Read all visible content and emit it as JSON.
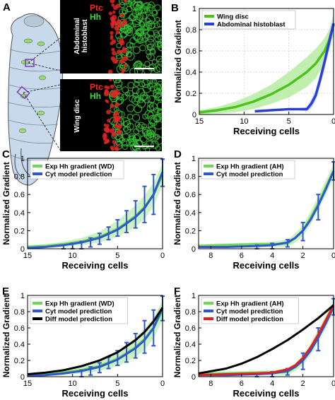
{
  "panel_A": {
    "letter": "A",
    "top_image": {
      "label_ptc": "Ptc",
      "label_hh": "Hh",
      "side_label": "Abdominal histoblast"
    },
    "bottom_image": {
      "label_ptc": "Ptc",
      "label_hh": "Hh",
      "side_label": "Wing disc"
    },
    "colors": {
      "ptc": "#ff2a2a",
      "hh": "#3ddc3d",
      "background": "#000000",
      "larva": "#c7d9ea"
    }
  },
  "chart_data": [
    {
      "panel": "B",
      "type": "line",
      "ylabel": "Normalized Gradient",
      "xlabel": "Receiving cells",
      "xlim": [
        15,
        0
      ],
      "ylim": [
        0,
        1
      ],
      "xticks": [
        "15",
        "10",
        "5",
        "0"
      ],
      "yticks": [
        "0",
        "0.2",
        "0.4",
        "0.6",
        "0.8",
        "1"
      ],
      "grid": true,
      "legend_position": "top-left",
      "series": [
        {
          "name": "Wing disc",
          "color": "#4cc21c",
          "band_color": "#b9eda6",
          "x": [
            15,
            13,
            11,
            9,
            7,
            5,
            3,
            2,
            1,
            0.5,
            0
          ],
          "y": [
            0.02,
            0.04,
            0.07,
            0.12,
            0.19,
            0.28,
            0.4,
            0.48,
            0.6,
            0.7,
            0.85
          ],
          "band": [
            0.02,
            0.03,
            0.05,
            0.07,
            0.09,
            0.12,
            0.14,
            0.14,
            0.12,
            0.1,
            0.1
          ]
        },
        {
          "name": "Abdominal histoblast",
          "color": "#2a3fd6",
          "band_color": "#c3c9f2",
          "x": [
            8.8,
            7,
            5,
            4,
            3,
            2.5,
            2,
            1.5,
            1,
            0.5,
            0
          ],
          "y": [
            0.03,
            0.04,
            0.05,
            0.05,
            0.05,
            0.1,
            0.18,
            0.33,
            0.5,
            0.68,
            0.86
          ],
          "band": [
            0.01,
            0.01,
            0.01,
            0.01,
            0.02,
            0.04,
            0.05,
            0.06,
            0.07,
            0.07,
            0.08
          ]
        }
      ]
    },
    {
      "panel": "C",
      "type": "line",
      "ylabel": "Normalized Gradient",
      "xlabel": "Receiving cells",
      "xlim": [
        15,
        0
      ],
      "ylim": [
        0,
        1
      ],
      "xticks": [
        "15",
        "10",
        "5",
        "0"
      ],
      "yticks": [
        "0",
        "0.2",
        "0.4",
        "0.6",
        "0.8",
        "1"
      ],
      "grid": false,
      "legend_position": "top-left",
      "series": [
        {
          "name": "Exp Hh gradient (WD)",
          "color": "#6fd65a",
          "band_color": "#c6f0bb",
          "x": [
            15,
            13,
            11,
            9,
            7,
            5,
            3,
            2,
            1,
            0
          ],
          "y": [
            0.02,
            0.03,
            0.05,
            0.08,
            0.13,
            0.22,
            0.36,
            0.46,
            0.6,
            0.82
          ],
          "band": [
            0.02,
            0.02,
            0.03,
            0.04,
            0.06,
            0.09,
            0.12,
            0.13,
            0.13,
            0.12
          ]
        },
        {
          "name": "Cyt model prediction",
          "color": "#2e58c9",
          "x": [
            15,
            13,
            11,
            9,
            7,
            5,
            3,
            2,
            1,
            0
          ],
          "y": [
            0.01,
            0.02,
            0.04,
            0.07,
            0.12,
            0.21,
            0.35,
            0.45,
            0.6,
            0.85
          ],
          "errbars": [
            {
              "x": 11,
              "y": 0.01,
              "e": 0.03
            },
            {
              "x": 10,
              "y": 0.02,
              "e": 0.04
            },
            {
              "x": 9,
              "y": 0.04,
              "e": 0.04
            },
            {
              "x": 8,
              "y": 0.07,
              "e": 0.05
            },
            {
              "x": 7,
              "y": 0.11,
              "e": 0.06
            },
            {
              "x": 6,
              "y": 0.17,
              "e": 0.07
            },
            {
              "x": 5,
              "y": 0.23,
              "e": 0.09
            },
            {
              "x": 4,
              "y": 0.3,
              "e": 0.12
            },
            {
              "x": 3,
              "y": 0.38,
              "e": 0.15
            },
            {
              "x": 2,
              "y": 0.49,
              "e": 0.2
            },
            {
              "x": 1,
              "y": 0.6,
              "e": 0.22
            },
            {
              "x": 0,
              "y": 0.84,
              "e": 0.15
            }
          ]
        }
      ]
    },
    {
      "panel": "D",
      "type": "line",
      "ylabel": "Normalized Gradient",
      "xlabel": "Receiving cells",
      "xlim": [
        8.8,
        0
      ],
      "ylim": [
        0,
        1
      ],
      "xticks": [
        "8",
        "6",
        "4",
        "2",
        "0"
      ],
      "yticks": [
        "0",
        "0.2",
        "0.4",
        "0.6",
        "0.8",
        "1"
      ],
      "grid": false,
      "legend_position": "top-left",
      "series": [
        {
          "name": "Exp Hh gradient (AH)",
          "color": "#6fd65a",
          "band_color": "#c6f0bb",
          "x": [
            8.8,
            7,
            5,
            4,
            3,
            2.5,
            2,
            1.5,
            1,
            0.5,
            0
          ],
          "y": [
            0.03,
            0.04,
            0.05,
            0.05,
            0.06,
            0.12,
            0.2,
            0.34,
            0.5,
            0.68,
            0.86
          ],
          "band": [
            0.02,
            0.02,
            0.02,
            0.03,
            0.04,
            0.05,
            0.06,
            0.07,
            0.08,
            0.08,
            0.08
          ]
        },
        {
          "name": "Cyt model prediction",
          "color": "#2e58c9",
          "x": [
            8.8,
            7,
            5,
            4,
            3,
            2.5,
            2,
            1.5,
            1,
            0.5,
            0
          ],
          "y": [
            0.02,
            0.02,
            0.03,
            0.04,
            0.07,
            0.12,
            0.2,
            0.32,
            0.48,
            0.66,
            0.86
          ],
          "errbars": [
            {
              "x": 5,
              "y": 0.02,
              "e": 0.02
            },
            {
              "x": 4,
              "y": 0.03,
              "e": 0.03
            },
            {
              "x": 3,
              "y": 0.06,
              "e": 0.04
            },
            {
              "x": 2,
              "y": 0.19,
              "e": 0.1
            },
            {
              "x": 1,
              "y": 0.46,
              "e": 0.14
            },
            {
              "x": 0,
              "y": 0.86,
              "e": 0.1
            }
          ]
        }
      ]
    },
    {
      "panel": "E",
      "type": "line",
      "ylabel": "Normalized Gradient",
      "xlabel": "Receiving cells",
      "xlim": [
        15,
        0
      ],
      "ylim": [
        0,
        1
      ],
      "xticks": [
        "15",
        "10",
        "5",
        "0"
      ],
      "yticks": [
        "0",
        "0.2",
        "0.4",
        "0.6",
        "0.8",
        "1"
      ],
      "grid": false,
      "legend_position": "top-left",
      "series": [
        {
          "name": "Exp Hh gradient (WD)",
          "color": "#6fd65a",
          "band_color": "#c6f0bb",
          "x": [
            15,
            13,
            11,
            9,
            7,
            5,
            3,
            2,
            1,
            0
          ],
          "y": [
            0.02,
            0.03,
            0.05,
            0.08,
            0.13,
            0.22,
            0.36,
            0.46,
            0.6,
            0.82
          ],
          "band": [
            0.02,
            0.02,
            0.03,
            0.04,
            0.06,
            0.09,
            0.12,
            0.13,
            0.13,
            0.12
          ]
        },
        {
          "name": "Cyt model prediction",
          "color": "#2e58c9",
          "x": [
            15,
            13,
            11,
            9,
            7,
            5,
            3,
            2,
            1,
            0
          ],
          "y": [
            0.01,
            0.02,
            0.04,
            0.07,
            0.12,
            0.21,
            0.35,
            0.45,
            0.6,
            0.85
          ],
          "errbars": [
            {
              "x": 9,
              "y": 0.04,
              "e": 0.04
            },
            {
              "x": 8,
              "y": 0.07,
              "e": 0.05
            },
            {
              "x": 7,
              "y": 0.11,
              "e": 0.06
            },
            {
              "x": 6,
              "y": 0.17,
              "e": 0.07
            },
            {
              "x": 5,
              "y": 0.23,
              "e": 0.09
            },
            {
              "x": 4,
              "y": 0.3,
              "e": 0.12
            },
            {
              "x": 3,
              "y": 0.38,
              "e": 0.15
            },
            {
              "x": 2,
              "y": 0.49,
              "e": 0.2
            },
            {
              "x": 1,
              "y": 0.6,
              "e": 0.22
            },
            {
              "x": 0,
              "y": 0.84,
              "e": 0.15
            }
          ]
        },
        {
          "name": "Diff model prediction",
          "color": "#000000",
          "x": [
            15,
            13,
            11,
            9,
            7,
            5,
            3,
            2,
            1,
            0
          ],
          "y": [
            0.03,
            0.05,
            0.08,
            0.13,
            0.2,
            0.3,
            0.45,
            0.55,
            0.68,
            0.85
          ]
        }
      ]
    },
    {
      "panel": "F",
      "type": "line",
      "ylabel": "Normalized Gradient",
      "xlabel": "Receiving cells",
      "xlim": [
        8.8,
        0
      ],
      "ylim": [
        0,
        1
      ],
      "xticks": [
        "8",
        "6",
        "4",
        "2",
        "0"
      ],
      "yticks": [
        "0",
        "0.2",
        "0.4",
        "0.6",
        "0.8",
        "1"
      ],
      "grid": false,
      "legend_position": "top-left",
      "series": [
        {
          "name": "Exp Hh gradient (AH)",
          "color": "#6fd65a",
          "band_color": "#c6f0bb",
          "x": [
            8.8,
            7,
            5,
            4,
            3,
            2.5,
            2,
            1.5,
            1,
            0.5,
            0
          ],
          "y": [
            0.03,
            0.04,
            0.05,
            0.05,
            0.06,
            0.12,
            0.2,
            0.34,
            0.5,
            0.68,
            0.86
          ],
          "band": [
            0.02,
            0.02,
            0.02,
            0.03,
            0.04,
            0.05,
            0.06,
            0.07,
            0.08,
            0.08,
            0.08
          ]
        },
        {
          "name": "Cyt model prediction",
          "color": "#2e58c9",
          "x": [
            8.8,
            7,
            5,
            4,
            3,
            2.5,
            2,
            1.5,
            1,
            0.5,
            0
          ],
          "y": [
            0.02,
            0.02,
            0.03,
            0.04,
            0.07,
            0.12,
            0.2,
            0.32,
            0.48,
            0.66,
            0.86
          ],
          "errbars": [
            {
              "x": 5,
              "y": 0.02,
              "e": 0.02
            },
            {
              "x": 4,
              "y": 0.03,
              "e": 0.03
            },
            {
              "x": 3,
              "y": 0.06,
              "e": 0.04
            },
            {
              "x": 2,
              "y": 0.19,
              "e": 0.1
            },
            {
              "x": 1,
              "y": 0.46,
              "e": 0.14
            },
            {
              "x": 0,
              "y": 0.86,
              "e": 0.1
            }
          ]
        },
        {
          "name": "Diff model prediction",
          "color": "#e02020",
          "x": [
            8.8,
            7,
            5,
            4,
            3,
            2.5,
            2,
            1.5,
            1,
            0.5,
            0
          ],
          "y": [
            0.02,
            0.03,
            0.04,
            0.05,
            0.09,
            0.14,
            0.23,
            0.36,
            0.52,
            0.7,
            0.88
          ]
        },
        {
          "name": "",
          "color": "#000000",
          "x": [
            8.8,
            7,
            6,
            5,
            4,
            3,
            2,
            1,
            0
          ],
          "y": [
            0.04,
            0.1,
            0.16,
            0.24,
            0.34,
            0.45,
            0.58,
            0.72,
            0.88
          ]
        }
      ]
    }
  ]
}
